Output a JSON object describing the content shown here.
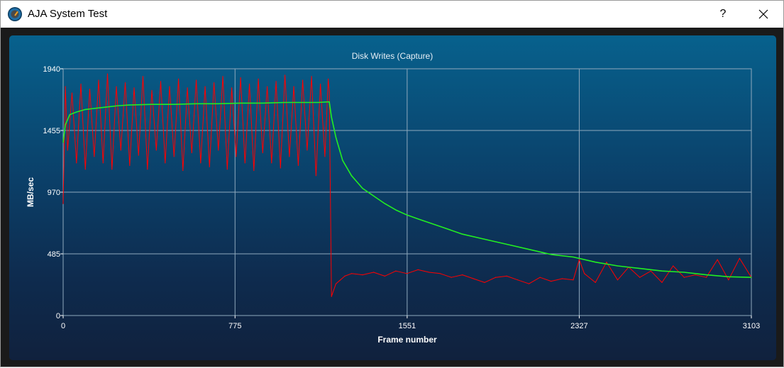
{
  "window": {
    "title": "AJA System Test",
    "help_label": "?",
    "close_icon": "close-icon"
  },
  "colors": {
    "panel_top": "#07618d",
    "panel_bottom": "#10213d",
    "grid": "#8fa9bd",
    "frame_rate_line": "#ff0000",
    "average_line": "#22ee22"
  },
  "chart_data": {
    "type": "line",
    "title": "Disk Writes (Capture)",
    "xlabel": "Frame number",
    "ylabel": "MB/sec",
    "xlim": [
      0,
      3103
    ],
    "ylim": [
      0,
      1940
    ],
    "xticks": [
      "0",
      "775",
      "1551",
      "2327",
      "3103"
    ],
    "yticks": [
      "0",
      "485",
      "970",
      "1455",
      "1940"
    ],
    "grid": true,
    "series": [
      {
        "color": "#ff0000",
        "x": [
          0,
          10,
          20,
          40,
          60,
          80,
          100,
          120,
          140,
          160,
          180,
          200,
          220,
          240,
          260,
          280,
          300,
          320,
          340,
          360,
          380,
          400,
          420,
          440,
          460,
          480,
          500,
          520,
          540,
          560,
          580,
          600,
          620,
          640,
          660,
          680,
          700,
          720,
          740,
          760,
          780,
          800,
          820,
          840,
          860,
          880,
          900,
          920,
          940,
          960,
          980,
          1000,
          1020,
          1040,
          1060,
          1080,
          1100,
          1120,
          1140,
          1160,
          1180,
          1195,
          1200,
          1210,
          1230,
          1250,
          1270,
          1300,
          1350,
          1400,
          1450,
          1500,
          1550,
          1600,
          1650,
          1700,
          1750,
          1800,
          1850,
          1900,
          1950,
          2000,
          2050,
          2100,
          2150,
          2200,
          2250,
          2300,
          2327,
          2350,
          2400,
          2450,
          2500,
          2550,
          2600,
          2650,
          2700,
          2750,
          2800,
          2850,
          2900,
          2950,
          3000,
          3050,
          3103
        ],
        "y": [
          880,
          1800,
          1300,
          1750,
          1200,
          1820,
          1150,
          1780,
          1250,
          1850,
          1200,
          1900,
          1150,
          1800,
          1300,
          1830,
          1180,
          1790,
          1260,
          1880,
          1150,
          1770,
          1300,
          1840,
          1200,
          1800,
          1250,
          1860,
          1140,
          1790,
          1280,
          1850,
          1200,
          1800,
          1170,
          1830,
          1300,
          1880,
          1150,
          1790,
          1250,
          1870,
          1200,
          1820,
          1140,
          1860,
          1280,
          1800,
          1200,
          1840,
          1160,
          1890,
          1250,
          1800,
          1180,
          1850,
          1300,
          1880,
          1100,
          1820,
          1250,
          1860,
          1760,
          150,
          250,
          280,
          310,
          330,
          320,
          340,
          310,
          350,
          330,
          360,
          340,
          330,
          300,
          320,
          290,
          260,
          300,
          310,
          280,
          250,
          300,
          270,
          290,
          280,
          440,
          330,
          260,
          420,
          280,
          380,
          300,
          350,
          260,
          390,
          300,
          320,
          300,
          440,
          280,
          450,
          300
        ]
      },
      {
        "color": "#22ee22",
        "x": [
          0,
          10,
          30,
          60,
          100,
          150,
          200,
          250,
          300,
          400,
          500,
          600,
          700,
          800,
          900,
          1000,
          1100,
          1150,
          1200,
          1210,
          1230,
          1260,
          1300,
          1350,
          1400,
          1450,
          1500,
          1551,
          1600,
          1700,
          1800,
          1900,
          2000,
          2100,
          2200,
          2300,
          2400,
          2500,
          2600,
          2700,
          2800,
          2900,
          3000,
          3103
        ],
        "y": [
          1360,
          1500,
          1580,
          1600,
          1620,
          1630,
          1640,
          1650,
          1655,
          1660,
          1660,
          1665,
          1665,
          1670,
          1670,
          1675,
          1675,
          1675,
          1680,
          1560,
          1400,
          1220,
          1100,
          1000,
          940,
          880,
          830,
          790,
          760,
          700,
          640,
          600,
          560,
          520,
          480,
          460,
          420,
          390,
          370,
          350,
          340,
          320,
          305,
          300
        ]
      }
    ]
  }
}
